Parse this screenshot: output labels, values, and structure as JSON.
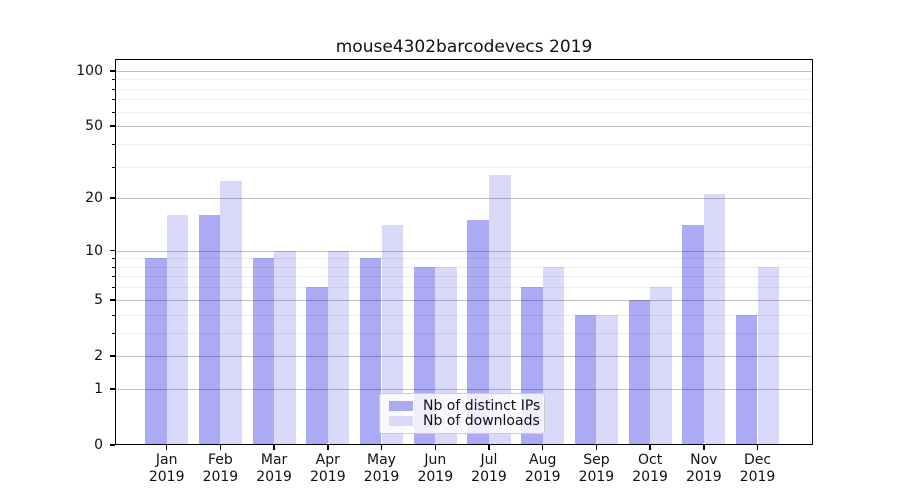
{
  "chart_data": {
    "type": "bar",
    "title": "mouse4302barcodevecs 2019",
    "categories": [
      "Jan",
      "Feb",
      "Mar",
      "Apr",
      "May",
      "Jun",
      "Jul",
      "Aug",
      "Sep",
      "Oct",
      "Nov",
      "Dec"
    ],
    "category_year": "2019",
    "series": [
      {
        "name": "Nb of distinct IPs",
        "color": "#aaaaf5",
        "values": [
          9,
          16,
          9,
          6,
          9,
          8,
          15,
          6,
          4,
          5,
          14,
          4
        ]
      },
      {
        "name": "Nb of downloads",
        "color": "#d9d9fa",
        "values": [
          16,
          25,
          10,
          10,
          14,
          8,
          27,
          8,
          4,
          6,
          21,
          8
        ]
      }
    ],
    "yscale": "log1p",
    "ylim": [
      0,
      117
    ],
    "y_major_ticks": [
      0,
      1,
      2,
      5,
      10,
      20,
      50,
      100
    ],
    "y_minor_ticks": [
      3,
      4,
      6,
      7,
      8,
      9,
      30,
      40,
      60,
      70,
      80,
      90
    ],
    "grid": "horizontal-major-and-minor",
    "legend_position": "lower-center-inside"
  },
  "colors": {
    "bar_distinct_ips": "#aaaaf5",
    "bar_downloads": "#d9d9fa",
    "grid_major": "rgba(0,0,0,0.24)",
    "grid_minor": "rgba(0,0,0,0.07)",
    "spine": "#000000",
    "text": "#111111",
    "legend_border": "#cccccc",
    "legend_bg": "rgba(255,255,255,0.8)"
  }
}
